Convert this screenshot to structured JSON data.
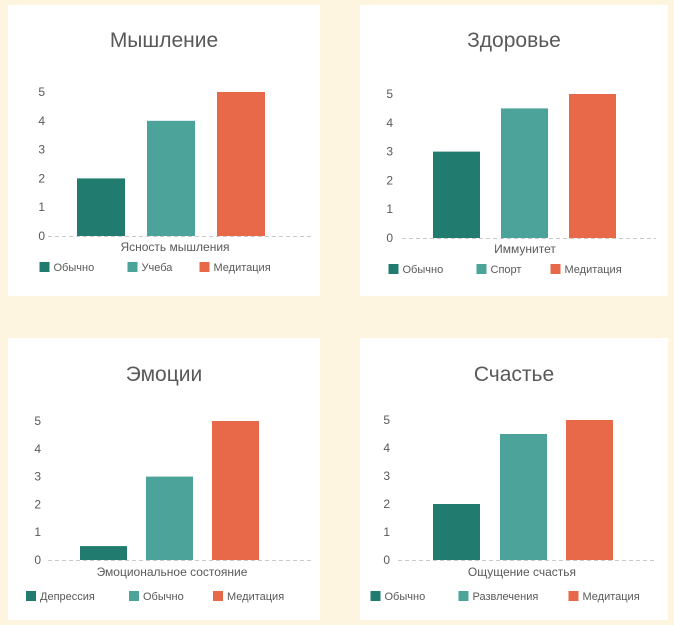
{
  "colors": {
    "dark_teal": "#217B6F",
    "teal": "#4BA39A",
    "orange": "#E8694A",
    "background": "#FDF5DF"
  },
  "chart_data": [
    {
      "type": "bar",
      "title": "Мышление",
      "categories": [
        "Ясность мышления"
      ],
      "series": [
        {
          "name": "Обычно",
          "values": [
            2
          ]
        },
        {
          "name": "Учеба",
          "values": [
            4
          ]
        },
        {
          "name": "Медитация",
          "values": [
            5
          ]
        }
      ],
      "yticks": [
        0,
        1,
        2,
        3,
        4,
        5
      ],
      "ylim": [
        0,
        5
      ],
      "legend_position": "bottom",
      "grid": false
    },
    {
      "type": "bar",
      "title": "Здоровье",
      "categories": [
        "Иммунитет"
      ],
      "series": [
        {
          "name": "Обычно",
          "values": [
            3
          ]
        },
        {
          "name": "Спорт",
          "values": [
            4.5
          ]
        },
        {
          "name": "Медитация",
          "values": [
            5
          ]
        }
      ],
      "yticks": [
        0,
        1,
        2,
        3,
        4,
        5
      ],
      "ylim": [
        0,
        5
      ],
      "legend_position": "bottom",
      "grid": false
    },
    {
      "type": "bar",
      "title": "Эмоции",
      "categories": [
        "Эмоциональное состояние"
      ],
      "series": [
        {
          "name": "Депрессия",
          "values": [
            0.5
          ]
        },
        {
          "name": "Обычно",
          "values": [
            3
          ]
        },
        {
          "name": "Медитация",
          "values": [
            5
          ]
        }
      ],
      "yticks": [
        0,
        1,
        2,
        3,
        4,
        5
      ],
      "ylim": [
        0,
        5
      ],
      "legend_position": "bottom",
      "grid": false
    },
    {
      "type": "bar",
      "title": "Счастье",
      "categories": [
        "Ощущение счастья"
      ],
      "series": [
        {
          "name": "Обычно",
          "values": [
            2
          ]
        },
        {
          "name": "Развлечения",
          "values": [
            4.5
          ]
        },
        {
          "name": "Медитация",
          "values": [
            5
          ]
        }
      ],
      "yticks": [
        0,
        1,
        2,
        3,
        4,
        5
      ],
      "ylim": [
        0,
        5
      ],
      "legend_position": "bottom",
      "grid": false
    }
  ]
}
